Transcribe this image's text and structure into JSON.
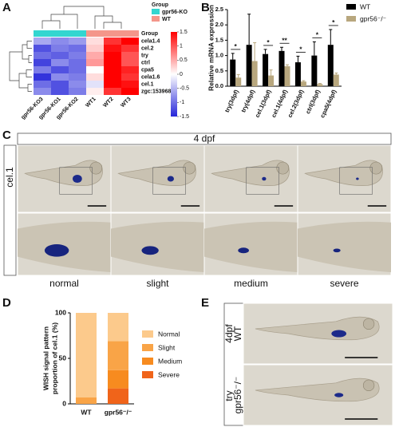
{
  "letters": [
    "A",
    "B",
    "C",
    "D",
    "E"
  ],
  "chart_data": [
    {
      "type": "heatmap",
      "rows": [
        "cela1.4",
        "cel.2",
        "try",
        "ctrl",
        "cpa5",
        "cela1.6",
        "cel.1",
        "zgc:153968"
      ],
      "columns": [
        "gpr56-KO3",
        "gpr56-KO1",
        "gpr56-KO2",
        "WT1",
        "WT2",
        "WT3"
      ],
      "values": [
        [
          -0.6,
          -0.8,
          -0.7,
          0.2,
          1.2,
          1.5
        ],
        [
          -1.2,
          -0.9,
          -1.0,
          0.3,
          1.4,
          1.2
        ],
        [
          -1.0,
          -1.1,
          -0.9,
          0.5,
          1.5,
          1.0
        ],
        [
          -1.3,
          -0.8,
          -1.0,
          0.6,
          1.5,
          1.0
        ],
        [
          -0.9,
          -1.2,
          -1.0,
          0.0,
          1.5,
          1.3
        ],
        [
          -1.4,
          -0.8,
          -0.9,
          0.2,
          1.5,
          1.2
        ],
        [
          -1.0,
          -1.2,
          -0.8,
          -0.2,
          1.5,
          1.4
        ],
        [
          -0.8,
          -1.2,
          -0.9,
          0.1,
          1.2,
          1.5
        ]
      ],
      "group_title": "Group",
      "groups": [
        {
          "name": "gpr56-KO",
          "color": "#33d6d0",
          "size": 3
        },
        {
          "name": "WT",
          "color": "#f4968a",
          "size": 3
        }
      ],
      "zlim": [
        -1.5,
        1.5
      ],
      "zticks": [
        1.5,
        1,
        0.5,
        0,
        -0.5,
        -1,
        -1.5
      ],
      "colors": {
        "low": "#2626d9",
        "mid": "#ffffff",
        "high": "#ff0000"
      }
    },
    {
      "type": "bar",
      "ylabel": "Relative mRNA expression",
      "categories": [
        "try(3dpf)",
        "try(4dpf)",
        "cel.1(3dpf)",
        "cel.1(4dpf)",
        "cel.2(3dpf)",
        "ctrl(3dpf)",
        "cpa5(4dpf)"
      ],
      "series": [
        {
          "name": "WT",
          "color": "#000000",
          "values": [
            0.87,
            1.35,
            1.05,
            1.15,
            0.78,
            1.0,
            1.35
          ],
          "errors": [
            0.2,
            1.0,
            0.15,
            0.12,
            0.2,
            0.45,
            0.5
          ]
        },
        {
          "name": "gpr56⁻/⁻",
          "color": "#b8a77e",
          "values": [
            0.28,
            0.82,
            0.35,
            0.65,
            0.15,
            0.07,
            0.38
          ],
          "errors": [
            0.1,
            0.6,
            0.18,
            0.05,
            0.03,
            0.02,
            0.05
          ]
        }
      ],
      "annotations": [
        {
          "category": "try(3dpf)",
          "text": "*"
        },
        {
          "category": "cel.1(3dpf)",
          "text": "*"
        },
        {
          "category": "cel.1(4dpf)",
          "text": "**"
        },
        {
          "category": "cel.2(3dpf)",
          "text": "*"
        },
        {
          "category": "ctrl(3dpf)",
          "text": "*"
        },
        {
          "category": "cpa5(4dpf)",
          "text": "*"
        }
      ],
      "ylim": [
        0,
        2.5
      ],
      "yticks": [
        {
          "value": 0,
          "label": "0.0"
        },
        {
          "value": 0.5,
          "label": "0.5"
        },
        {
          "value": 1,
          "label": "1.0"
        },
        {
          "value": 1.5,
          "label": "1.5"
        },
        {
          "value": 2,
          "label": "2.0"
        },
        {
          "value": 2.5,
          "label": "2.5"
        }
      ],
      "legend": "top-right"
    },
    {
      "type": "stacked_bar",
      "ylabel": [
        "WISH signal pattern",
        "proportion of cel.1 (%)"
      ],
      "categories": [
        "WT",
        "gpr56⁻/⁻"
      ],
      "series": [
        {
          "name": "Normal",
          "color": "#fcca8c",
          "values": [
            93,
            31
          ]
        },
        {
          "name": "Slight",
          "color": "#f9a447",
          "values": [
            7,
            32
          ]
        },
        {
          "name": "Medium",
          "color": "#f78b1f",
          "values": [
            0,
            20
          ]
        },
        {
          "name": "Severe",
          "color": "#f0641a",
          "values": [
            0,
            17
          ]
        }
      ],
      "ylim": [
        0,
        100
      ],
      "yticks": [
        0,
        50,
        100
      ],
      "legend": "right"
    }
  ],
  "panel_c": {
    "header": "4 dpf",
    "row_label": "cel.1",
    "columns": [
      "normal",
      "slight",
      "medium",
      "severe"
    ]
  },
  "panel_e": {
    "stage": "4dpf",
    "gene": "try",
    "rows": [
      "WT",
      "gpr56⁻/⁻"
    ]
  }
}
